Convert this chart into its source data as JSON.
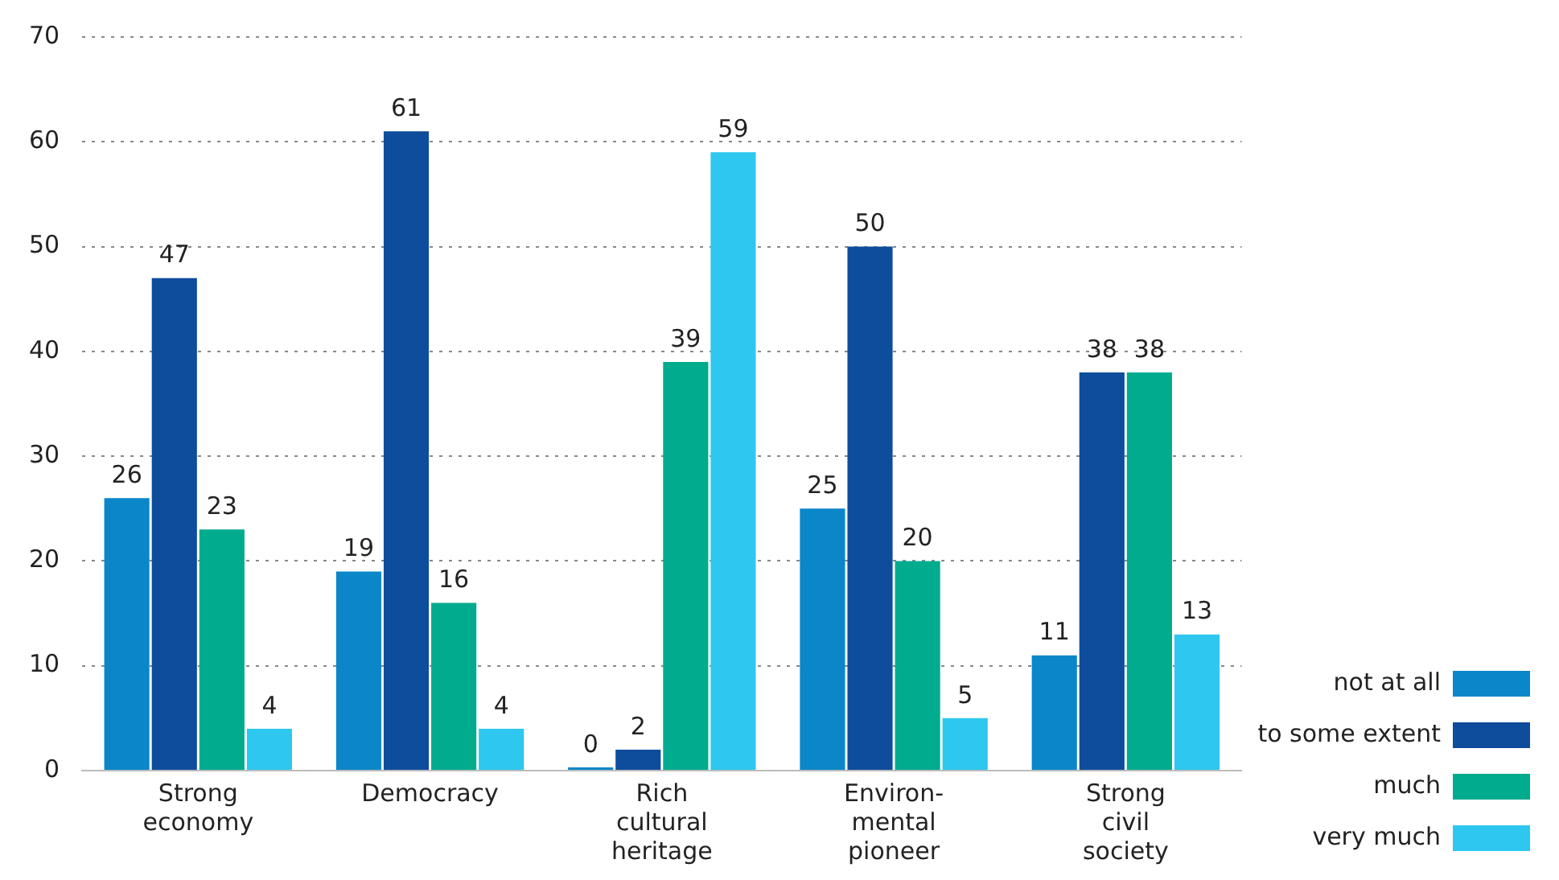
{
  "chart_data": {
    "type": "bar",
    "categories": [
      "Strong economy",
      "Democracy",
      "Rich cultural heritage",
      "Environ-mental pioneer",
      "Strong civil society"
    ],
    "series": [
      {
        "name": "not at all",
        "color": "#0a86c9",
        "values": [
          26,
          19,
          0,
          25,
          11
        ]
      },
      {
        "name": "to some extent",
        "color": "#0e4c9c",
        "values": [
          47,
          61,
          2,
          50,
          38
        ]
      },
      {
        "name": "much",
        "color": "#00ab8e",
        "values": [
          23,
          16,
          39,
          20,
          38
        ]
      },
      {
        "name": "very much",
        "color": "#2ec7f0",
        "values": [
          4,
          4,
          59,
          5,
          13
        ]
      }
    ],
    "ylim": [
      0,
      70
    ],
    "yticks": [
      0,
      10,
      20,
      30,
      40,
      50,
      60,
      70
    ],
    "grid": "y",
    "legend": "bottom right",
    "data_labels": true
  }
}
